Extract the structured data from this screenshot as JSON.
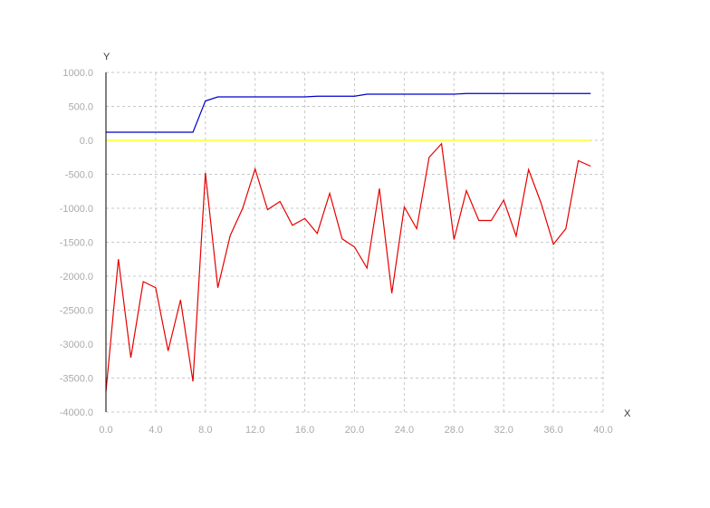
{
  "chart_data": {
    "type": "line",
    "title": "",
    "xlabel": "X",
    "ylabel": "Y",
    "xlim": [
      0,
      40
    ],
    "ylim": [
      -4000,
      1000
    ],
    "x_ticks": [
      0,
      4,
      8,
      12,
      16,
      20,
      24,
      28,
      32,
      36,
      40
    ],
    "x_tick_labels": [
      "0.0",
      "4.0",
      "8.0",
      "12.0",
      "16.0",
      "20.0",
      "24.0",
      "28.0",
      "32.0",
      "36.0",
      "40.0"
    ],
    "y_ticks": [
      1000,
      500,
      0,
      -500,
      -1000,
      -1500,
      -2000,
      -2500,
      -3000,
      -3500,
      -4000
    ],
    "y_tick_labels": [
      "1000.0",
      "500.0",
      "0.0",
      "-500.0",
      "-1000.0",
      "-1500.0",
      "-2000.0",
      "-2500.0",
      "-3000.0",
      "-3500.0",
      "-4000.0"
    ],
    "grid": true,
    "legend": "none",
    "series": [
      {
        "color": "#0000cc",
        "x": [
          0,
          1,
          2,
          3,
          4,
          5,
          6,
          7,
          8,
          9,
          10,
          11,
          12,
          13,
          14,
          15,
          16,
          17,
          18,
          19,
          20,
          21,
          22,
          23,
          24,
          25,
          26,
          27,
          28,
          29,
          30,
          31,
          32,
          33,
          34,
          35,
          36,
          37,
          38,
          39
        ],
        "values": [
          120,
          120,
          120,
          120,
          120,
          120,
          120,
          120,
          580,
          640,
          640,
          640,
          640,
          640,
          640,
          640,
          640,
          650,
          650,
          650,
          650,
          680,
          680,
          680,
          680,
          680,
          680,
          680,
          680,
          690,
          690,
          690,
          690,
          690,
          690,
          690,
          690,
          690,
          690,
          690
        ]
      },
      {
        "color": "#ffff00",
        "x": [
          0,
          1,
          2,
          3,
          4,
          5,
          6,
          7,
          8,
          9,
          10,
          11,
          12,
          13,
          14,
          15,
          16,
          17,
          18,
          19,
          20,
          21,
          22,
          23,
          24,
          25,
          26,
          27,
          28,
          29,
          30,
          31,
          32,
          33,
          34,
          35,
          36,
          37,
          38,
          39
        ],
        "values": [
          0,
          0,
          0,
          0,
          0,
          0,
          0,
          0,
          0,
          0,
          0,
          0,
          0,
          0,
          0,
          0,
          0,
          0,
          0,
          0,
          0,
          0,
          0,
          0,
          0,
          0,
          0,
          0,
          0,
          0,
          0,
          0,
          0,
          0,
          0,
          0,
          0,
          0,
          0,
          0
        ]
      },
      {
        "color": "#e60000",
        "x": [
          0,
          1,
          2,
          3,
          4,
          5,
          6,
          7,
          8,
          9,
          10,
          11,
          12,
          13,
          14,
          15,
          16,
          17,
          18,
          19,
          20,
          21,
          22,
          23,
          24,
          25,
          26,
          27,
          28,
          29,
          30,
          31,
          32,
          33,
          34,
          35,
          36,
          37,
          38,
          39
        ],
        "values": [
          -3700,
          -1750,
          -3200,
          -2080,
          -2170,
          -3100,
          -2350,
          -3550,
          -480,
          -2170,
          -1400,
          -1000,
          -420,
          -1020,
          -900,
          -1250,
          -1150,
          -1370,
          -780,
          -1450,
          -1570,
          -1880,
          -710,
          -2250,
          -980,
          -1300,
          -250,
          -50,
          -1460,
          -740,
          -1180,
          -1180,
          -880,
          -1410,
          -430,
          -920,
          -1530,
          -1300,
          -300,
          -380
        ]
      }
    ]
  }
}
